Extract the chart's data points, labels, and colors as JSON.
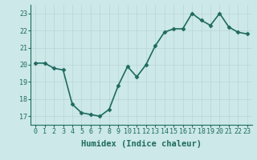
{
  "x": [
    0,
    1,
    2,
    3,
    4,
    5,
    6,
    7,
    8,
    9,
    10,
    11,
    12,
    13,
    14,
    15,
    16,
    17,
    18,
    19,
    20,
    21,
    22,
    23
  ],
  "y": [
    20.1,
    20.1,
    19.8,
    19.7,
    17.7,
    17.2,
    17.1,
    17.0,
    17.4,
    18.8,
    19.9,
    19.3,
    20.0,
    21.1,
    21.9,
    22.1,
    22.1,
    23.0,
    22.6,
    22.3,
    23.0,
    22.2,
    21.9,
    21.8
  ],
  "line_color": "#1e6b5e",
  "marker": "D",
  "marker_size": 2.5,
  "bg_color": "#cce8e8",
  "grid_color": "#b8d5d5",
  "xlabel": "Humidex (Indice chaleur)",
  "ylim": [
    16.5,
    23.5
  ],
  "xlim": [
    -0.5,
    23.5
  ],
  "yticks": [
    17,
    18,
    19,
    20,
    21,
    22,
    23
  ],
  "xticks": [
    0,
    1,
    2,
    3,
    4,
    5,
    6,
    7,
    8,
    9,
    10,
    11,
    12,
    13,
    14,
    15,
    16,
    17,
    18,
    19,
    20,
    21,
    22,
    23
  ],
  "label_fontsize": 7.5,
  "tick_fontsize": 6.0,
  "linewidth": 1.2
}
